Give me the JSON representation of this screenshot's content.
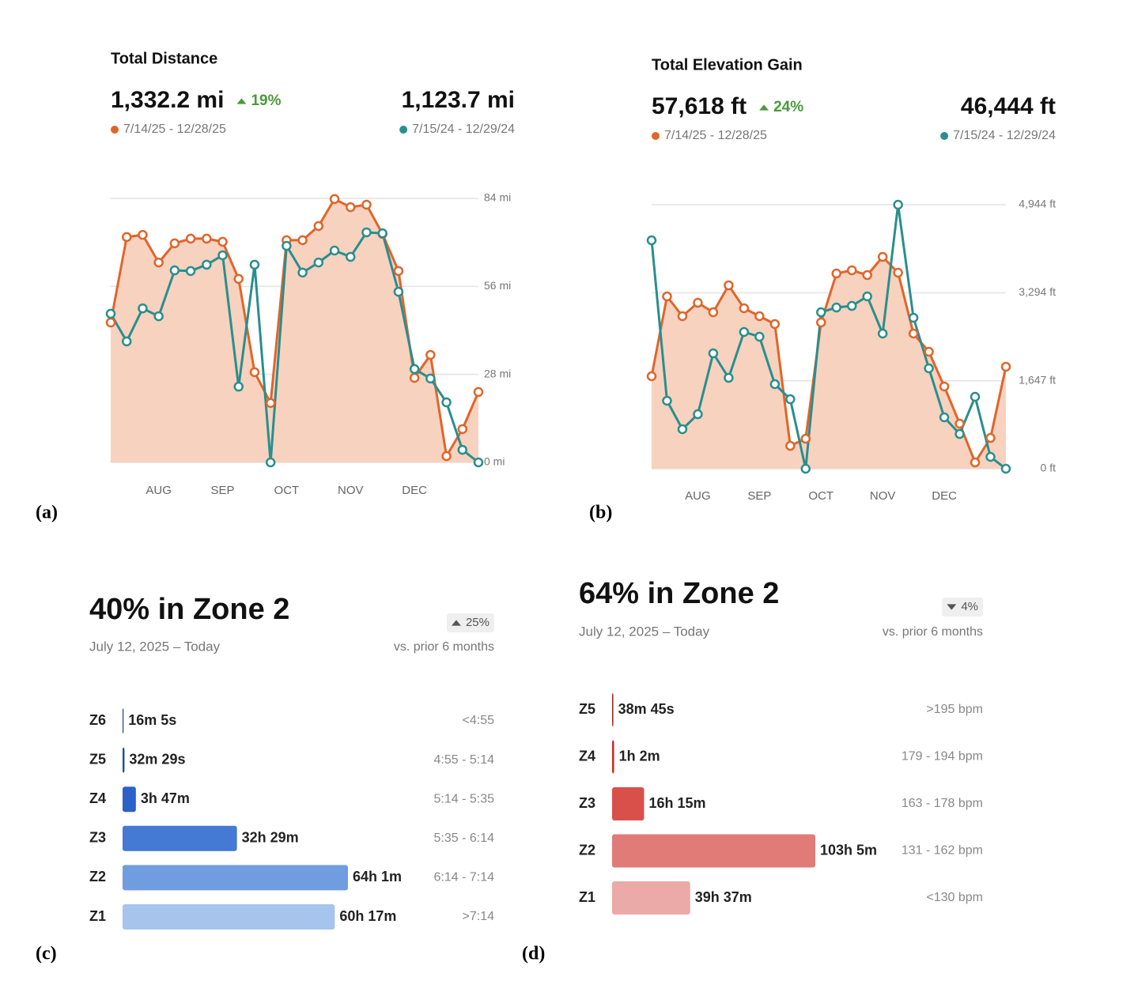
{
  "chart_data": [
    {
      "type": "line",
      "panel": "(a)",
      "title": "Total Distance",
      "change": "19%",
      "change_direction": "up",
      "change_color": "#4a9a3a",
      "categories": [
        null,
        null,
        null,
        "AUG",
        null,
        null,
        null,
        "SEP",
        null,
        null,
        null,
        "OCT",
        null,
        null,
        null,
        "NOV",
        null,
        null,
        null,
        "DEC",
        null,
        null,
        null,
        null
      ],
      "ylim": [
        0,
        84
      ],
      "yticks": [
        {
          "value": 0,
          "label": "0 mi"
        },
        {
          "value": 28,
          "label": "28 mi"
        },
        {
          "value": 56,
          "label": "56 mi"
        },
        {
          "value": 84,
          "label": "84 mi"
        }
      ],
      "grid": true,
      "series": [
        {
          "name": "7/14/25 - 12/28/25",
          "total": "1,332.2 mi",
          "color": "#e0652a",
          "fill": "#f7d2bf",
          "values": [
            44.5,
            71.7,
            72.4,
            63.6,
            69.7,
            71.2,
            71.2,
            70.2,
            58.4,
            28.7,
            18.9,
            70.7,
            70.7,
            75.2,
            83.8,
            81.2,
            82.0,
            72.7,
            60.9,
            26.9,
            34.2,
            2.0,
            10.6,
            22.4
          ]
        },
        {
          "name": "7/15/24 - 12/29/24",
          "total": "1,123.7 mi",
          "color": "#2a8e8e",
          "values": [
            47.3,
            38.5,
            49.0,
            46.5,
            61.1,
            60.9,
            62.9,
            65.9,
            24.1,
            62.9,
            0,
            68.9,
            60.4,
            63.6,
            67.4,
            65.4,
            73.2,
            72.9,
            54.3,
            29.7,
            26.7,
            19.1,
            4.0,
            0
          ]
        }
      ]
    },
    {
      "type": "line",
      "panel": "(b)",
      "title": "Total Elevation Gain",
      "change": "24%",
      "change_direction": "up",
      "change_color": "#4a9a3a",
      "categories": [
        null,
        null,
        null,
        "AUG",
        null,
        null,
        null,
        "SEP",
        null,
        null,
        null,
        "OCT",
        null,
        null,
        null,
        "NOV",
        null,
        null,
        null,
        "DEC",
        null,
        null,
        null,
        null
      ],
      "ylim": [
        0,
        4944
      ],
      "yticks": [
        {
          "value": 0,
          "label": "0 ft"
        },
        {
          "value": 1647,
          "label": "1,647 ft"
        },
        {
          "value": 3294,
          "label": "3,294 ft"
        },
        {
          "value": 4944,
          "label": "4,944 ft"
        }
      ],
      "grid": true,
      "series": [
        {
          "name": "7/14/25 - 12/28/25",
          "total": "57,618 ft",
          "color": "#e0652a",
          "fill": "#f7d2bf",
          "values": [
            1732,
            3227,
            2857,
            3108,
            2930,
            3434,
            3005,
            2857,
            2709,
            429,
            562,
            2739,
            3656,
            3716,
            3627,
            3967,
            3671,
            2531,
            2191,
            1540,
            844,
            118,
            577,
            1910
          ]
        },
        {
          "name": "7/15/24 - 12/29/24",
          "total": "46,444 ft",
          "color": "#2a8e8e",
          "values": [
            4278,
            1273,
            740,
            1021,
            2161,
            1702,
            2561,
            2472,
            1584,
            1302,
            0,
            2930,
            3019,
            3049,
            3227,
            2531,
            4944,
            2827,
            1880,
            962,
            651,
            1347,
            222,
            0
          ]
        }
      ]
    },
    {
      "type": "bar",
      "orientation": "horizontal",
      "panel": "(c)",
      "title": "40% in Zone 2",
      "subtitle": "July 12, 2025 – Today",
      "change": "25%",
      "change_direction": "up",
      "change_color": "#555555",
      "comparison": "vs. prior 6 months",
      "categories": [
        "Z6",
        "Z5",
        "Z4",
        "Z3",
        "Z2",
        "Z1"
      ],
      "values": [
        16.083,
        32.483,
        227,
        1949,
        3841,
        3617
      ],
      "value_labels": [
        "16m 5s",
        "32m 29s",
        "3h 47m",
        "32h 29m",
        "64h 1m",
        "60h 17m"
      ],
      "ranges": [
        "<4:55",
        "4:55 - 5:14",
        "5:14 - 5:35",
        "5:35 - 6:14",
        "6:14 - 7:14",
        ">7:14"
      ],
      "colors": [
        "#1d3f7a",
        "#1f4fa0",
        "#2a62c9",
        "#4479d4",
        "#6f9de0",
        "#a6c4ec"
      ]
    },
    {
      "type": "bar",
      "orientation": "horizontal",
      "panel": "(d)",
      "title": "64% in Zone 2",
      "subtitle": "July 12, 2025 – Today",
      "change": "4%",
      "change_direction": "down",
      "change_color": "#555555",
      "comparison": "vs. prior 6 months",
      "categories": [
        "Z5",
        "Z4",
        "Z3",
        "Z2",
        "Z1"
      ],
      "values": [
        38.75,
        62,
        975,
        6185,
        2377
      ],
      "value_labels": [
        "38m 45s",
        "1h 2m",
        "16h 15m",
        "103h 5m",
        "39h 37m"
      ],
      "ranges": [
        ">195 bpm",
        "179 - 194 bpm",
        "163 - 178 bpm",
        "131 - 162 bpm",
        "<130 bpm"
      ],
      "colors": [
        "#a82a24",
        "#c8302b",
        "#d9504a",
        "#e07b78",
        "#eba9a8"
      ]
    }
  ]
}
